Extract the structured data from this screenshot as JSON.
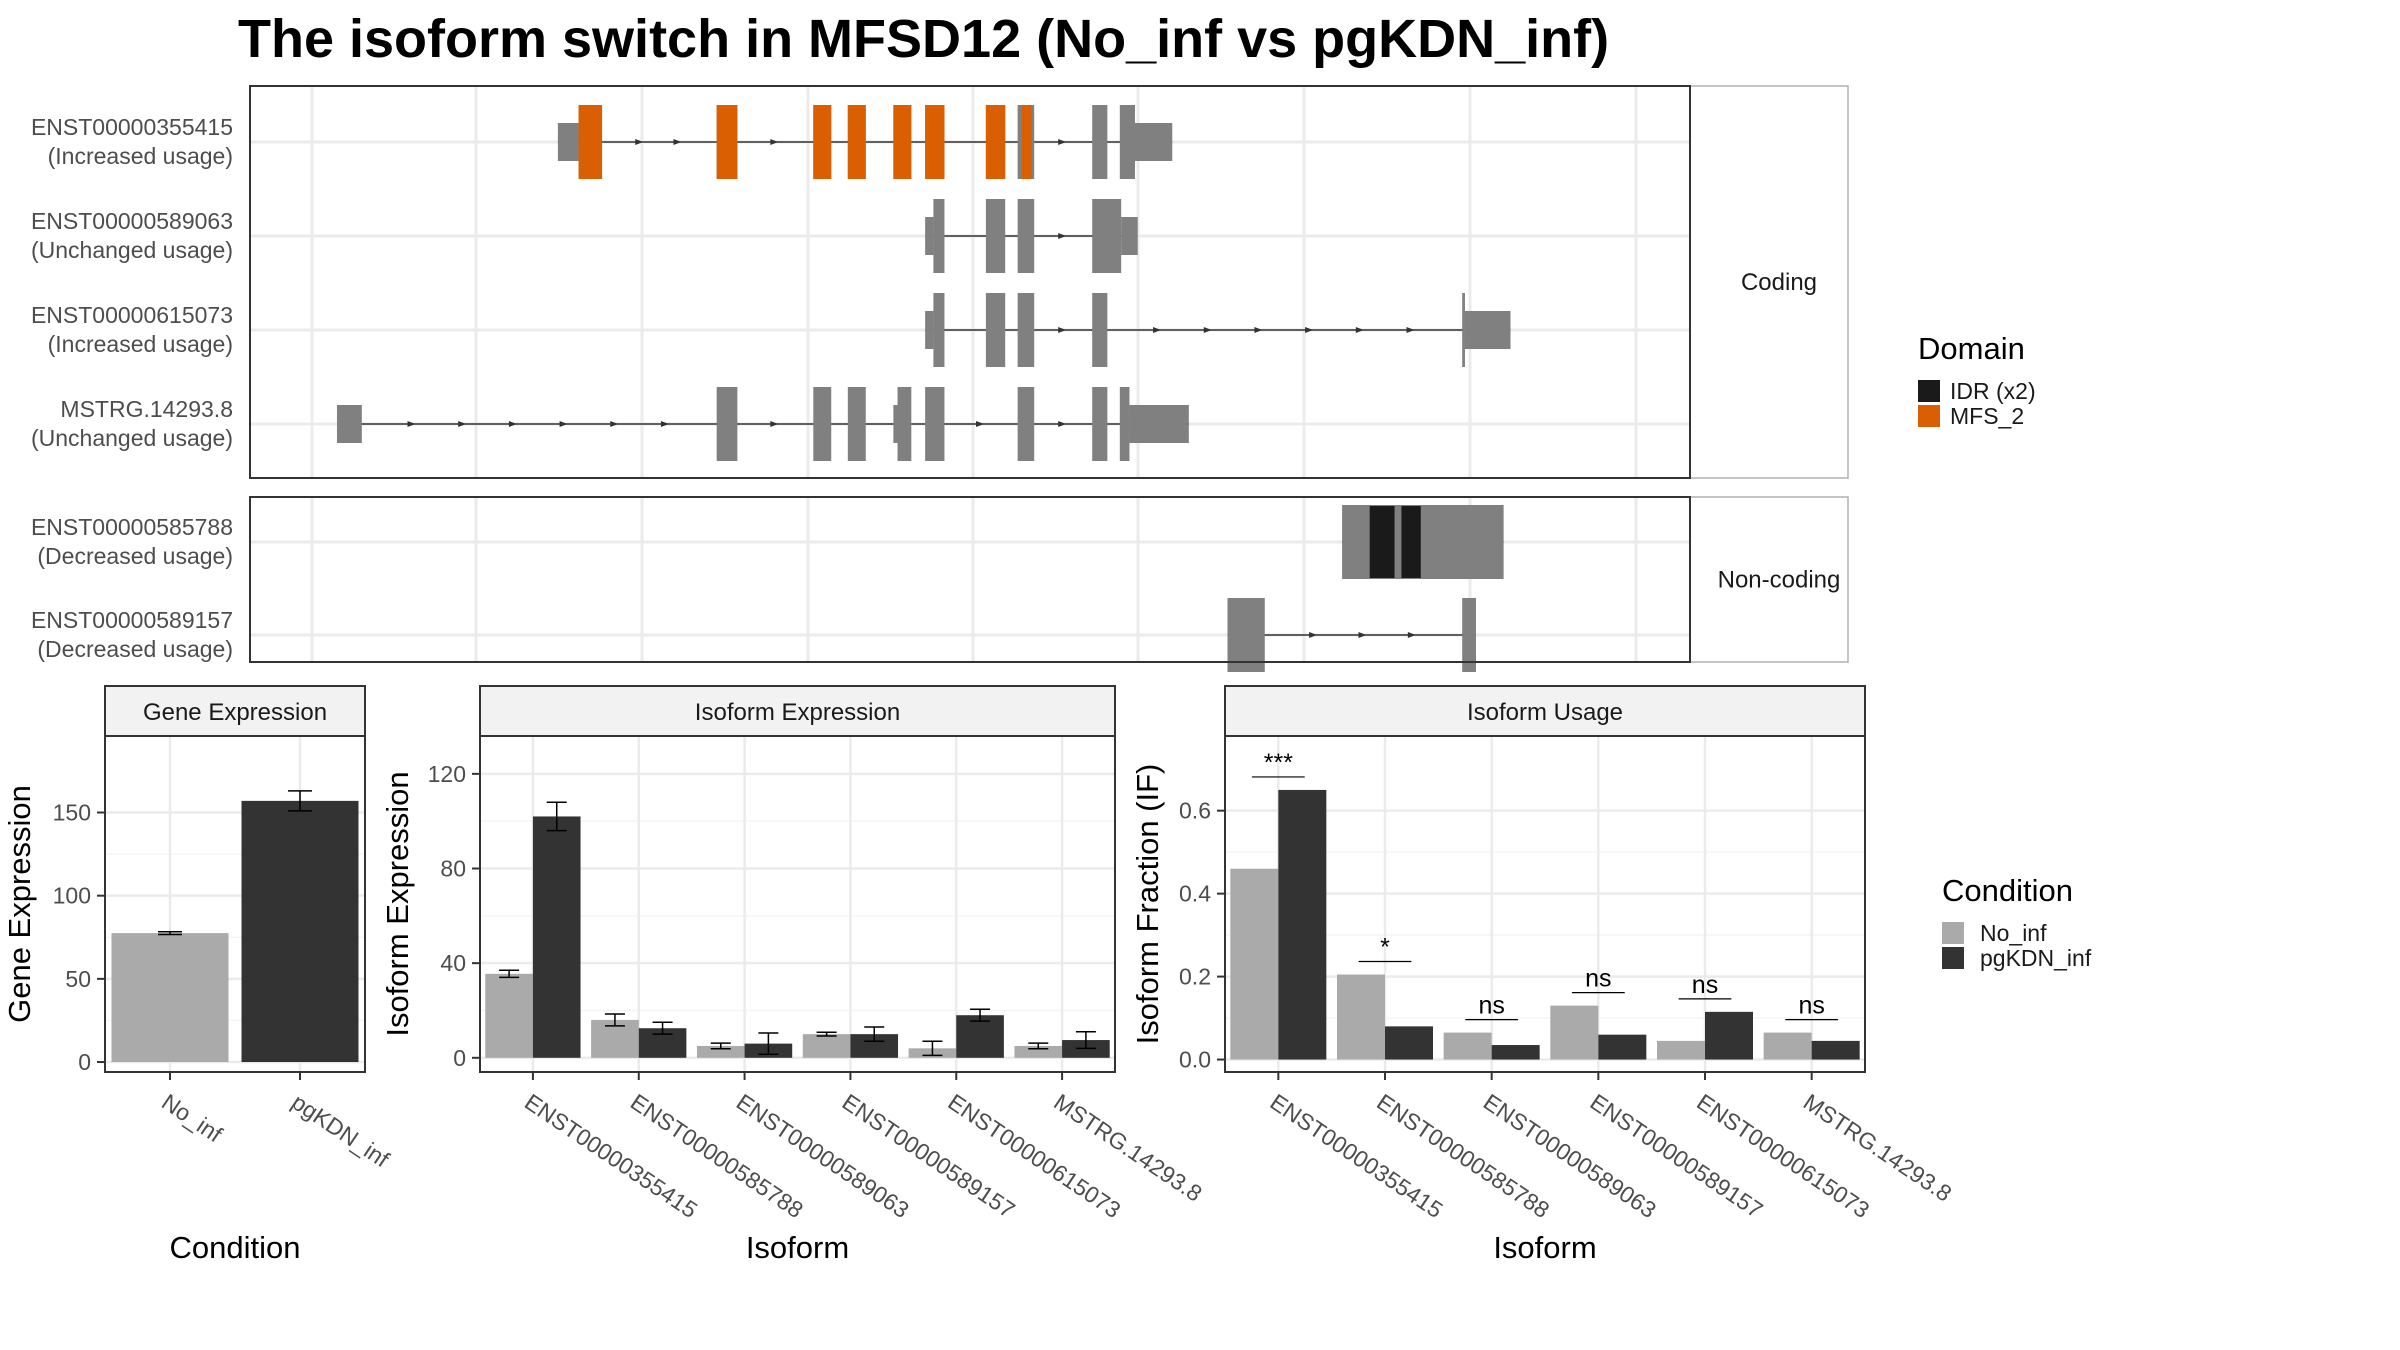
{
  "title": "The isoform switch in MFSD12 (No_inf vs pgKDN_inf)",
  "structure": {
    "panels": [
      {
        "key": "coding",
        "label": "Coding",
        "transcripts": [
          {
            "id": "ENST00000355415",
            "usage": "(Increased usage)",
            "strand": "forward",
            "exons": [
              [
                360,
                375
              ],
              [
                375,
                392
              ],
              [
                475,
                490
              ],
              [
                545,
                558
              ],
              [
                570,
                583
              ],
              [
                603,
                616
              ],
              [
                626,
                640
              ],
              [
                670,
                684
              ],
              [
                693,
                705
              ],
              [
                747,
                758
              ],
              [
                767,
                778
              ],
              [
                778,
                805
              ]
            ],
            "domains": [
              {
                "name": "MFS_2",
                "x": [
                  375,
                  392
                ]
              },
              {
                "name": "MFS_2",
                "x": [
                  475,
                  490
                ]
              },
              {
                "name": "MFS_2",
                "x": [
                  545,
                  558
                ]
              },
              {
                "name": "MFS_2",
                "x": [
                  570,
                  583
                ]
              },
              {
                "name": "MFS_2",
                "x": [
                  603,
                  616
                ]
              },
              {
                "name": "MFS_2",
                "x": [
                  626,
                  640
                ]
              },
              {
                "name": "MFS_2",
                "x": [
                  670,
                  684
                ]
              },
              {
                "name": "MFS_2",
                "x": [
                  696,
                  703
                ]
              }
            ],
            "utr": [
              [
                360,
                375
              ],
              [
                778,
                805
              ]
            ]
          },
          {
            "id": "ENST00000589063",
            "usage": "(Unchanged usage)",
            "strand": "forward",
            "exons": [
              [
                626,
                632
              ],
              [
                632,
                640
              ],
              [
                670,
                684
              ],
              [
                693,
                705
              ],
              [
                747,
                768
              ],
              [
                768,
                780
              ]
            ],
            "domains": [],
            "utr": [
              [
                626,
                632
              ],
              [
                768,
                780
              ]
            ]
          },
          {
            "id": "ENST00000615073",
            "usage": "(Increased usage)",
            "strand": "forward",
            "exons": [
              [
                626,
                632
              ],
              [
                632,
                640
              ],
              [
                670,
                684
              ],
              [
                693,
                705
              ],
              [
                747,
                758
              ],
              [
                1015,
                1017
              ],
              [
                1017,
                1050
              ]
            ],
            "domains": [],
            "utr": [
              [
                626,
                632
              ],
              [
                1017,
                1050
              ]
            ]
          },
          {
            "id": "MSTRG.14293.8",
            "usage": "(Unchanged usage)",
            "strand": "forward",
            "exons": [
              [
                200,
                218
              ],
              [
                475,
                490
              ],
              [
                545,
                558
              ],
              [
                570,
                583
              ],
              [
                603,
                606
              ],
              [
                606,
                616
              ],
              [
                626,
                640
              ],
              [
                693,
                705
              ],
              [
                747,
                758
              ],
              [
                767,
                774
              ],
              [
                774,
                817
              ]
            ],
            "domains": [],
            "utr": [
              [
                200,
                218
              ],
              [
                603,
                606
              ],
              [
                774,
                817
              ]
            ]
          }
        ]
      },
      {
        "key": "noncoding",
        "label": "Non-coding",
        "transcripts": [
          {
            "id": "ENST00000585788",
            "usage": "(Decreased usage)",
            "strand": "forward",
            "exons": [
              [
                928,
                1045
              ]
            ],
            "domains": [
              {
                "name": "IDR (x2)",
                "x": [
                  948,
                  966
                ]
              },
              {
                "name": "IDR (x2)",
                "x": [
                  971,
                  985
                ]
              }
            ],
            "utr": []
          },
          {
            "id": "ENST00000589157",
            "usage": "(Decreased usage)",
            "strand": "forward",
            "exons": [
              [
                845,
                872
              ],
              [
                1015,
                1025
              ]
            ],
            "domains": [],
            "utr": []
          }
        ]
      }
    ],
    "legend": {
      "title": "Domain",
      "items": [
        {
          "label": "IDR (x2)",
          "color": "#1a1a1a"
        },
        {
          "label": "MFS_2",
          "color": "#d95f02"
        }
      ]
    }
  },
  "chart_data": [
    {
      "type": "bar",
      "title": "Gene Expression",
      "categories": [
        "No_inf",
        "pgKDN_inf"
      ],
      "series": [
        {
          "name": "No_inf",
          "values": [
            77.5,
            157
          ]
        }
      ],
      "errors": [
        0.8,
        6
      ],
      "colors": [
        "#aaaaaa",
        "#333333"
      ],
      "xlabel": "Condition",
      "ylabel": "Gene Expression",
      "ylim": [
        -6,
        196
      ],
      "yticks": [
        0,
        50,
        100,
        150
      ]
    },
    {
      "type": "bar",
      "title": "Isoform Expression",
      "categories": [
        "ENST00000355415",
        "ENST00000585788",
        "ENST00000589063",
        "ENST00000589157",
        "ENST00000615073",
        "MSTRG.14293.8"
      ],
      "series": [
        {
          "name": "No_inf",
          "values": [
            35.5,
            16,
            5,
            10,
            4,
            5
          ],
          "errors": [
            1.5,
            2.5,
            1.2,
            0.8,
            3,
            1.2
          ]
        },
        {
          "name": "pgKDN_inf",
          "values": [
            102,
            12.5,
            6,
            10,
            18,
            7.5
          ],
          "errors": [
            6,
            2.5,
            4.5,
            3,
            2.5,
            3.5
          ]
        }
      ],
      "xlabel": "Isoform",
      "ylabel": "Isoform Expression",
      "ylim": [
        -6,
        136
      ],
      "yticks": [
        0,
        40,
        80,
        120
      ]
    },
    {
      "type": "bar",
      "title": "Isoform Usage",
      "categories": [
        "ENST00000355415",
        "ENST00000585788",
        "ENST00000589063",
        "ENST00000589157",
        "ENST00000615073",
        "MSTRG.14293.8"
      ],
      "series": [
        {
          "name": "No_inf",
          "values": [
            0.46,
            0.205,
            0.065,
            0.13,
            0.045,
            0.065
          ]
        },
        {
          "name": "pgKDN_inf",
          "values": [
            0.65,
            0.08,
            0.035,
            0.06,
            0.115,
            0.045
          ]
        }
      ],
      "significance": [
        "***",
        "*",
        "ns",
        "ns",
        "ns",
        "ns"
      ],
      "xlabel": "Isoform",
      "ylabel": "Isoform Fraction (IF)",
      "ylim": [
        -0.03,
        0.78
      ],
      "yticks": [
        0.0,
        0.2,
        0.4,
        0.6
      ],
      "ytick_labels": [
        "0.0",
        "0.2",
        "0.4",
        "0.6"
      ]
    }
  ],
  "condition_legend": {
    "title": "Condition",
    "items": [
      {
        "label": "No_inf",
        "color": "#aaaaaa"
      },
      {
        "label": "pgKDN_inf",
        "color": "#333333"
      }
    ]
  }
}
